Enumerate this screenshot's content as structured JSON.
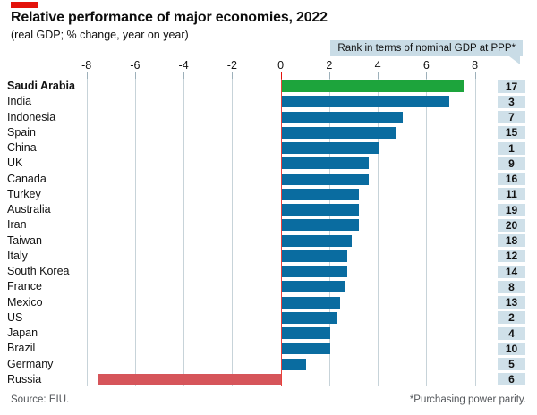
{
  "accent_color": "#e3120b",
  "footer": {
    "source": "Source: EIU.",
    "footnote": "*Purchasing power parity."
  },
  "chart_data": {
    "type": "bar",
    "orientation": "horizontal",
    "title": "Relative performance of major economies, 2022",
    "subtitle": "(real GDP; % change, year on year)",
    "annotation": "Rank in terms of nominal GDP at PPP*",
    "xlabel": "real GDP, % change, year on year",
    "xlim": [
      -8,
      9
    ],
    "x_ticks": [
      -8,
      -6,
      -4,
      -2,
      0,
      2,
      4,
      6,
      8
    ],
    "grid": "vertical",
    "legend_position": "top-right",
    "colors": {
      "blue": "#0a6ca0",
      "green": "#1da43c",
      "red": "#d6555a",
      "badge_bg": "#cfe0e9",
      "callout_bg": "#c9dce6",
      "grid": "#c7d3d9",
      "tick": "#9db0ba",
      "zero_line": "#e3120b"
    },
    "rows": [
      {
        "country": "Saudi Arabia",
        "value": 7.5,
        "rank": 17,
        "color": "green",
        "bold": true
      },
      {
        "country": "India",
        "value": 6.9,
        "rank": 3,
        "color": "blue"
      },
      {
        "country": "Indonesia",
        "value": 5.0,
        "rank": 7,
        "color": "blue"
      },
      {
        "country": "Spain",
        "value": 4.7,
        "rank": 15,
        "color": "blue"
      },
      {
        "country": "China",
        "value": 4.0,
        "rank": 1,
        "color": "blue"
      },
      {
        "country": "UK",
        "value": 3.6,
        "rank": 9,
        "color": "blue"
      },
      {
        "country": "Canada",
        "value": 3.6,
        "rank": 16,
        "color": "blue"
      },
      {
        "country": "Turkey",
        "value": 3.2,
        "rank": 11,
        "color": "blue"
      },
      {
        "country": "Australia",
        "value": 3.2,
        "rank": 19,
        "color": "blue"
      },
      {
        "country": "Iran",
        "value": 3.2,
        "rank": 20,
        "color": "blue"
      },
      {
        "country": "Taiwan",
        "value": 2.9,
        "rank": 18,
        "color": "blue"
      },
      {
        "country": "Italy",
        "value": 2.7,
        "rank": 12,
        "color": "blue"
      },
      {
        "country": "South Korea",
        "value": 2.7,
        "rank": 14,
        "color": "blue"
      },
      {
        "country": "France",
        "value": 2.6,
        "rank": 8,
        "color": "blue"
      },
      {
        "country": "Mexico",
        "value": 2.4,
        "rank": 13,
        "color": "blue"
      },
      {
        "country": "US",
        "value": 2.3,
        "rank": 2,
        "color": "blue"
      },
      {
        "country": "Japan",
        "value": 2.0,
        "rank": 4,
        "color": "blue"
      },
      {
        "country": "Brazil",
        "value": 2.0,
        "rank": 10,
        "color": "blue"
      },
      {
        "country": "Germany",
        "value": 1.0,
        "rank": 5,
        "color": "blue"
      },
      {
        "country": "Russia",
        "value": -7.5,
        "rank": 6,
        "color": "red"
      }
    ]
  }
}
